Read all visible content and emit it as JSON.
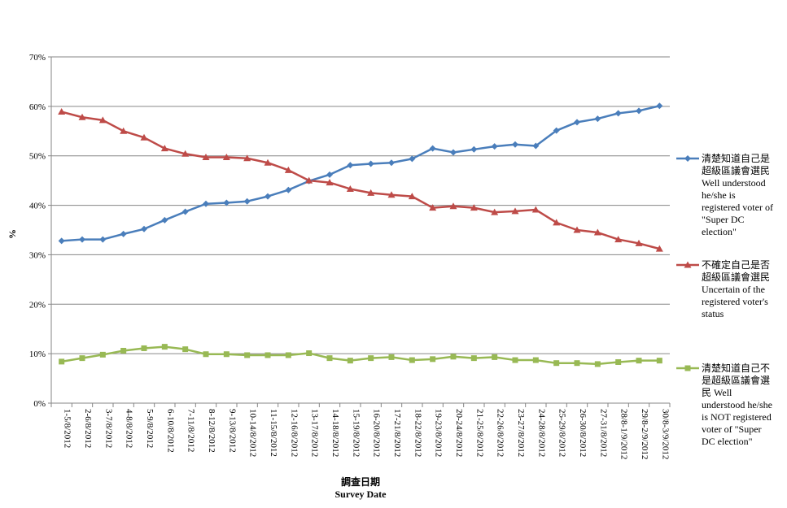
{
  "chart_data": {
    "type": "line",
    "xlabel_zh": "調查日期",
    "xlabel_en": "Survey Date",
    "ylabel": "%",
    "ylim": [
      0,
      70
    ],
    "yticks": [
      "0%",
      "10%",
      "20%",
      "30%",
      "40%",
      "50%",
      "60%",
      "70%"
    ],
    "grid": "horizontal",
    "legend_position": "right",
    "categories": [
      "1-5/8/2012",
      "2-6/8/2012",
      "3-7/8/2012",
      "4-8/8/2012",
      "5-9/8/2012",
      "6-10/8/2012",
      "7-11/8/2012",
      "8-12/8/2012",
      "9-13/8/2012",
      "10-14/8/2012",
      "11-15/8/2012",
      "12-16/8/2012",
      "13-17/8/2012",
      "14-18/8/2012",
      "15-19/8/2012",
      "16-20/8/2012",
      "17-21/8/2012",
      "18-22/8/2012",
      "19-23/8/2012",
      "20-24/8/2012",
      "21-25/8/2012",
      "22-26/8/2012",
      "23-27/8/2012",
      "24-28/8/2012",
      "25-29/8/2012",
      "26-30/8/2012",
      "27-31/8/2012",
      "28/8-1/9/2012",
      "29/8-2/9/2012",
      "30/8-3/9/2012"
    ],
    "series": [
      {
        "name": "清楚知道自己是超級區議會選民 Well understood he/she is registered voter of \"Super DC election\"",
        "legend_lines": [
          "清楚知道自己是",
          "超級區議會選民",
          "Well understood",
          "he/she is",
          "registered voter of",
          "\"Super DC",
          "election\""
        ],
        "color": "#4a7ebb",
        "marker": "diamond",
        "values": [
          32.8,
          33.1,
          33.1,
          34.2,
          35.2,
          37.0,
          38.7,
          40.3,
          40.5,
          40.8,
          41.8,
          43.1,
          44.9,
          46.2,
          48.1,
          48.4,
          48.6,
          49.4,
          51.5,
          50.7,
          51.3,
          51.9,
          52.3,
          52.0,
          55.1,
          56.8,
          57.5,
          58.6,
          59.1,
          60.1
        ]
      },
      {
        "name": "不確定自己是否超級區議會選民 Uncertain of the registered voter's status",
        "legend_lines": [
          "不確定自己是否",
          "超級區議會選民",
          "Uncertain of the",
          "registered voter's",
          "status"
        ],
        "color": "#be4b48",
        "marker": "triangle",
        "values": [
          58.9,
          57.8,
          57.2,
          55.0,
          53.7,
          51.5,
          50.4,
          49.7,
          49.7,
          49.5,
          48.6,
          47.1,
          45.0,
          44.6,
          43.3,
          42.5,
          42.1,
          41.8,
          39.5,
          39.8,
          39.5,
          38.6,
          38.8,
          39.1,
          36.5,
          35.0,
          34.5,
          33.1,
          32.3,
          31.2
        ]
      },
      {
        "name": "清楚知道自己不是超級區議會選民 Well understood he/she is NOT registered voter of \"Super DC election\"",
        "legend_lines": [
          "清楚知道自己不",
          "是超級區議會選",
          "民 Well",
          "understood he/she",
          "is NOT registered",
          "voter of \"Super",
          "DC election\""
        ],
        "color": "#98b954",
        "marker": "square",
        "values": [
          8.4,
          9.1,
          9.8,
          10.6,
          11.1,
          11.4,
          10.9,
          9.9,
          9.9,
          9.7,
          9.7,
          9.7,
          10.1,
          9.1,
          8.6,
          9.1,
          9.3,
          8.7,
          8.9,
          9.4,
          9.1,
          9.3,
          8.7,
          8.7,
          8.1,
          8.1,
          7.9,
          8.3,
          8.6,
          8.6
        ]
      }
    ]
  }
}
